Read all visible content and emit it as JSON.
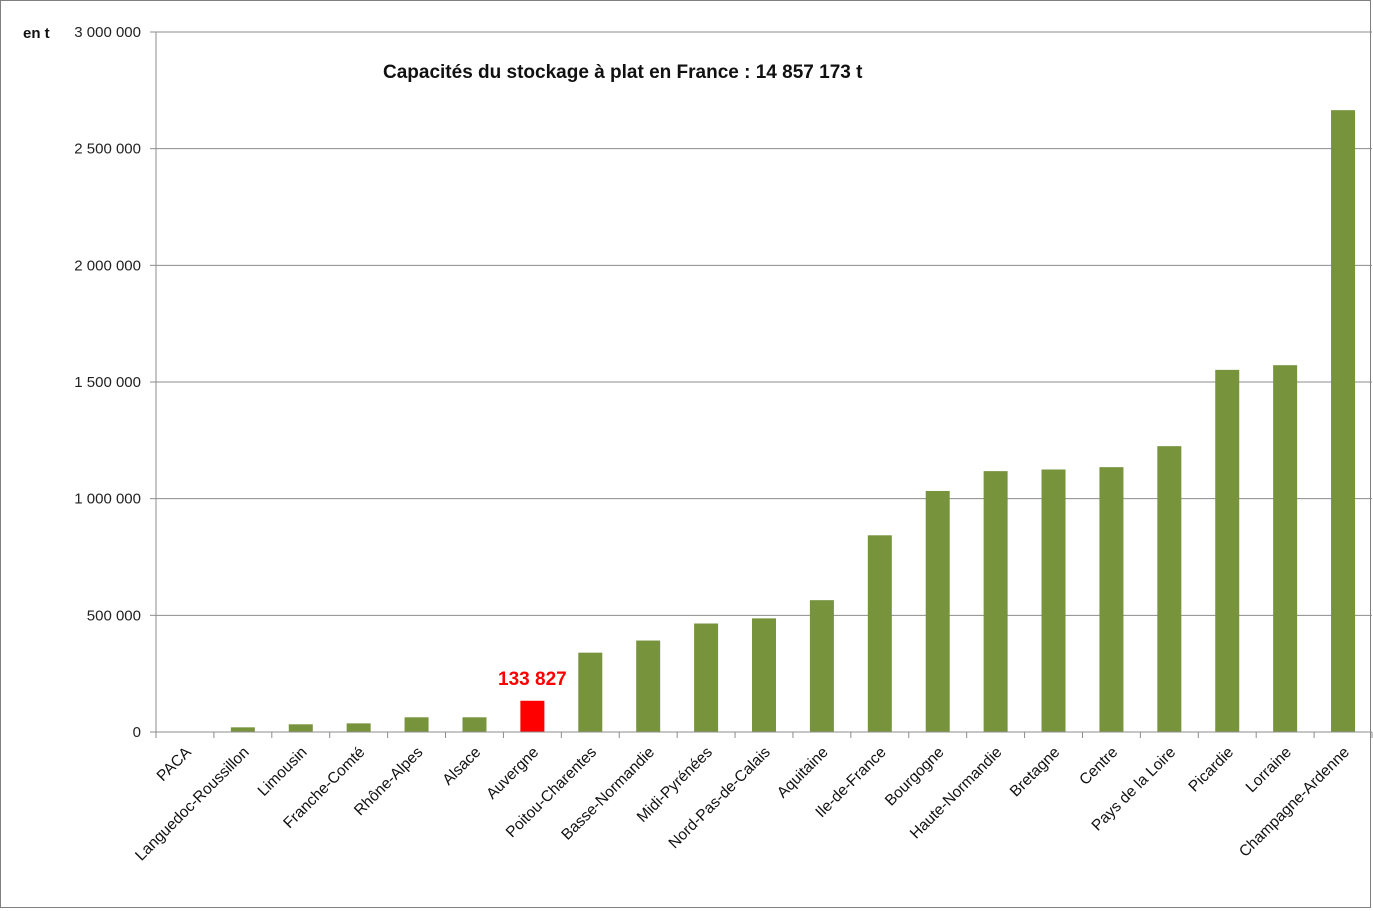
{
  "chart_data": {
    "type": "bar",
    "title": "Capacités du stockage à plat en France : 14 857 173 t",
    "unit_label": "en t",
    "xlabel": "",
    "ylabel": "",
    "ylim": [
      0,
      3000000
    ],
    "y_ticks": [
      0,
      500000,
      1000000,
      1500000,
      2000000,
      2500000,
      3000000
    ],
    "y_tick_labels": [
      "0",
      "500 000",
      "1 000 000",
      "1 500 000",
      "2 000 000",
      "2 500 000",
      "3 000 000"
    ],
    "grid": "horizontal",
    "legend": "none",
    "categories": [
      "PACA",
      "Languedoc-Roussillon",
      "Limousin",
      "Franche-Comté",
      "Rhône-Alpes",
      "Alsace",
      "Auvergne",
      "Poitou-Charentes",
      "Basse-Normandie",
      "Midi-Pyrénées",
      "Nord-Pas-de-Calais",
      "Aquitaine",
      "Ile-de-France",
      "Bourgogne",
      "Haute-Normandie",
      "Bretagne",
      "Centre",
      "Pays de la Loire",
      "Picardie",
      "Lorraine",
      "Champagne-Ardenne"
    ],
    "values": [
      0,
      20000,
      33000,
      37000,
      63000,
      63000,
      133827,
      340000,
      392000,
      465000,
      487000,
      565000,
      843000,
      1033000,
      1118000,
      1125000,
      1135000,
      1225000,
      1552000,
      1572000,
      2665000
    ],
    "highlight": {
      "category": "Auvergne",
      "label": "133 827",
      "color": "#ff0000"
    },
    "bar_color": "#77933c"
  }
}
